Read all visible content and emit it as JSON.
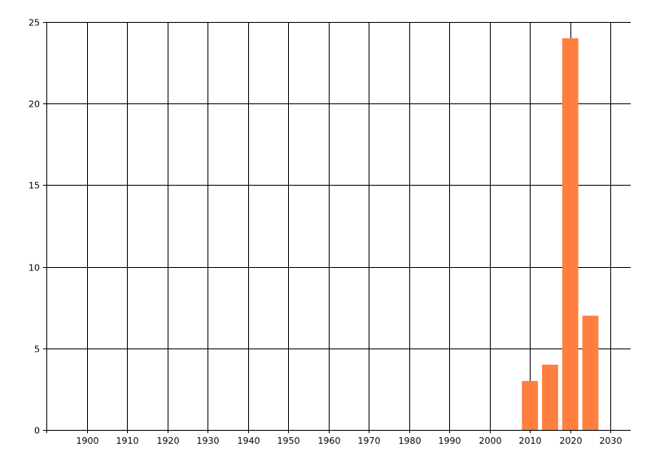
{
  "chart_data": {
    "type": "bar",
    "title": "",
    "xlabel": "",
    "ylabel": "",
    "x": [
      2010,
      2015,
      2020,
      2025
    ],
    "values": [
      3,
      4,
      24,
      7
    ],
    "bar_width_years": 4,
    "xlim": [
      1890,
      2035
    ],
    "ylim": [
      0,
      25
    ],
    "xticks": [
      1900,
      1910,
      1920,
      1930,
      1940,
      1950,
      1960,
      1970,
      1980,
      1990,
      2000,
      2010,
      2020,
      2030
    ],
    "yticks": [
      0,
      5,
      10,
      15,
      20,
      25
    ],
    "grid": true,
    "bar_color": "#ff7f3f",
    "grid_color": "#000000"
  }
}
